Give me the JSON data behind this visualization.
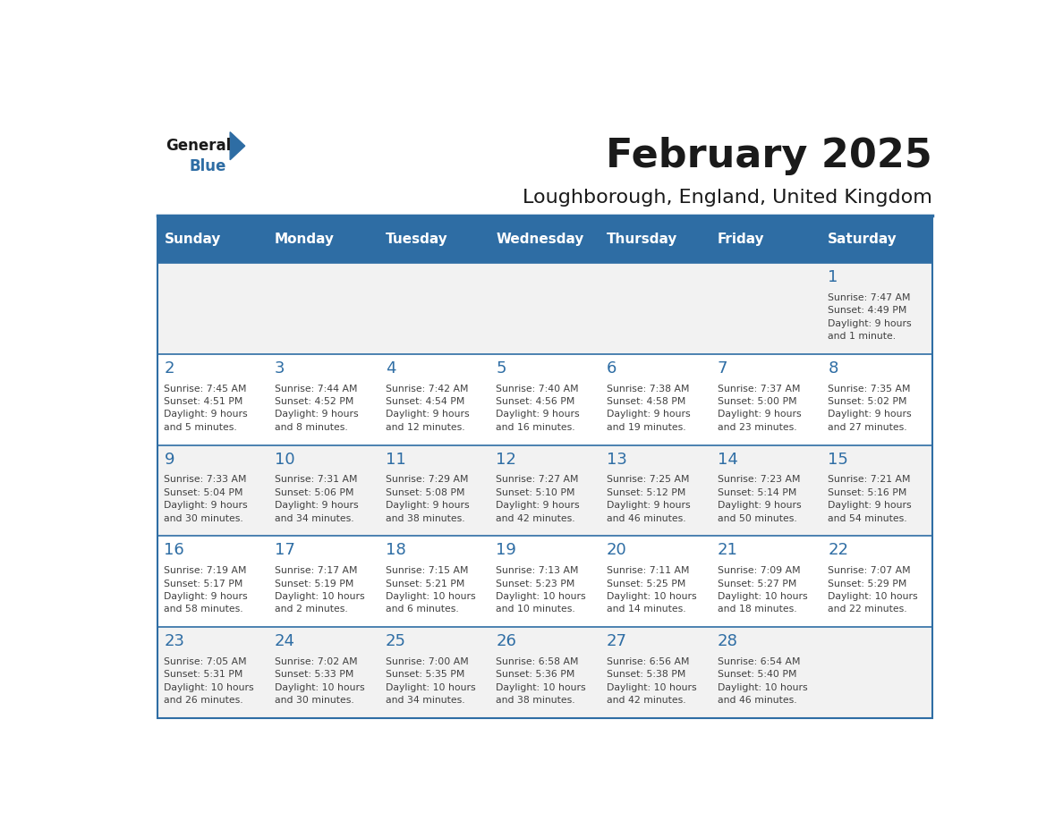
{
  "title": "February 2025",
  "subtitle": "Loughborough, England, United Kingdom",
  "days_of_week": [
    "Sunday",
    "Monday",
    "Tuesday",
    "Wednesday",
    "Thursday",
    "Friday",
    "Saturday"
  ],
  "header_bg": "#2E6DA4",
  "header_text": "#FFFFFF",
  "row_bg_odd": "#F2F2F2",
  "row_bg_even": "#FFFFFF",
  "cell_border": "#2E6DA4",
  "day_number_color": "#2E6DA4",
  "info_text_color": "#404040",
  "title_color": "#1a1a1a",
  "subtitle_color": "#1a1a1a",
  "weeks": [
    [
      {
        "day": null,
        "info": ""
      },
      {
        "day": null,
        "info": ""
      },
      {
        "day": null,
        "info": ""
      },
      {
        "day": null,
        "info": ""
      },
      {
        "day": null,
        "info": ""
      },
      {
        "day": null,
        "info": ""
      },
      {
        "day": 1,
        "info": "Sunrise: 7:47 AM\nSunset: 4:49 PM\nDaylight: 9 hours\nand 1 minute."
      }
    ],
    [
      {
        "day": 2,
        "info": "Sunrise: 7:45 AM\nSunset: 4:51 PM\nDaylight: 9 hours\nand 5 minutes."
      },
      {
        "day": 3,
        "info": "Sunrise: 7:44 AM\nSunset: 4:52 PM\nDaylight: 9 hours\nand 8 minutes."
      },
      {
        "day": 4,
        "info": "Sunrise: 7:42 AM\nSunset: 4:54 PM\nDaylight: 9 hours\nand 12 minutes."
      },
      {
        "day": 5,
        "info": "Sunrise: 7:40 AM\nSunset: 4:56 PM\nDaylight: 9 hours\nand 16 minutes."
      },
      {
        "day": 6,
        "info": "Sunrise: 7:38 AM\nSunset: 4:58 PM\nDaylight: 9 hours\nand 19 minutes."
      },
      {
        "day": 7,
        "info": "Sunrise: 7:37 AM\nSunset: 5:00 PM\nDaylight: 9 hours\nand 23 minutes."
      },
      {
        "day": 8,
        "info": "Sunrise: 7:35 AM\nSunset: 5:02 PM\nDaylight: 9 hours\nand 27 minutes."
      }
    ],
    [
      {
        "day": 9,
        "info": "Sunrise: 7:33 AM\nSunset: 5:04 PM\nDaylight: 9 hours\nand 30 minutes."
      },
      {
        "day": 10,
        "info": "Sunrise: 7:31 AM\nSunset: 5:06 PM\nDaylight: 9 hours\nand 34 minutes."
      },
      {
        "day": 11,
        "info": "Sunrise: 7:29 AM\nSunset: 5:08 PM\nDaylight: 9 hours\nand 38 minutes."
      },
      {
        "day": 12,
        "info": "Sunrise: 7:27 AM\nSunset: 5:10 PM\nDaylight: 9 hours\nand 42 minutes."
      },
      {
        "day": 13,
        "info": "Sunrise: 7:25 AM\nSunset: 5:12 PM\nDaylight: 9 hours\nand 46 minutes."
      },
      {
        "day": 14,
        "info": "Sunrise: 7:23 AM\nSunset: 5:14 PM\nDaylight: 9 hours\nand 50 minutes."
      },
      {
        "day": 15,
        "info": "Sunrise: 7:21 AM\nSunset: 5:16 PM\nDaylight: 9 hours\nand 54 minutes."
      }
    ],
    [
      {
        "day": 16,
        "info": "Sunrise: 7:19 AM\nSunset: 5:17 PM\nDaylight: 9 hours\nand 58 minutes."
      },
      {
        "day": 17,
        "info": "Sunrise: 7:17 AM\nSunset: 5:19 PM\nDaylight: 10 hours\nand 2 minutes."
      },
      {
        "day": 18,
        "info": "Sunrise: 7:15 AM\nSunset: 5:21 PM\nDaylight: 10 hours\nand 6 minutes."
      },
      {
        "day": 19,
        "info": "Sunrise: 7:13 AM\nSunset: 5:23 PM\nDaylight: 10 hours\nand 10 minutes."
      },
      {
        "day": 20,
        "info": "Sunrise: 7:11 AM\nSunset: 5:25 PM\nDaylight: 10 hours\nand 14 minutes."
      },
      {
        "day": 21,
        "info": "Sunrise: 7:09 AM\nSunset: 5:27 PM\nDaylight: 10 hours\nand 18 minutes."
      },
      {
        "day": 22,
        "info": "Sunrise: 7:07 AM\nSunset: 5:29 PM\nDaylight: 10 hours\nand 22 minutes."
      }
    ],
    [
      {
        "day": 23,
        "info": "Sunrise: 7:05 AM\nSunset: 5:31 PM\nDaylight: 10 hours\nand 26 minutes."
      },
      {
        "day": 24,
        "info": "Sunrise: 7:02 AM\nSunset: 5:33 PM\nDaylight: 10 hours\nand 30 minutes."
      },
      {
        "day": 25,
        "info": "Sunrise: 7:00 AM\nSunset: 5:35 PM\nDaylight: 10 hours\nand 34 minutes."
      },
      {
        "day": 26,
        "info": "Sunrise: 6:58 AM\nSunset: 5:36 PM\nDaylight: 10 hours\nand 38 minutes."
      },
      {
        "day": 27,
        "info": "Sunrise: 6:56 AM\nSunset: 5:38 PM\nDaylight: 10 hours\nand 42 minutes."
      },
      {
        "day": 28,
        "info": "Sunrise: 6:54 AM\nSunset: 5:40 PM\nDaylight: 10 hours\nand 46 minutes."
      },
      {
        "day": null,
        "info": ""
      }
    ]
  ],
  "logo_triangle_color": "#2E6DA4",
  "logo_general_color": "#1a1a1a",
  "logo_blue_color": "#2E6DA4"
}
